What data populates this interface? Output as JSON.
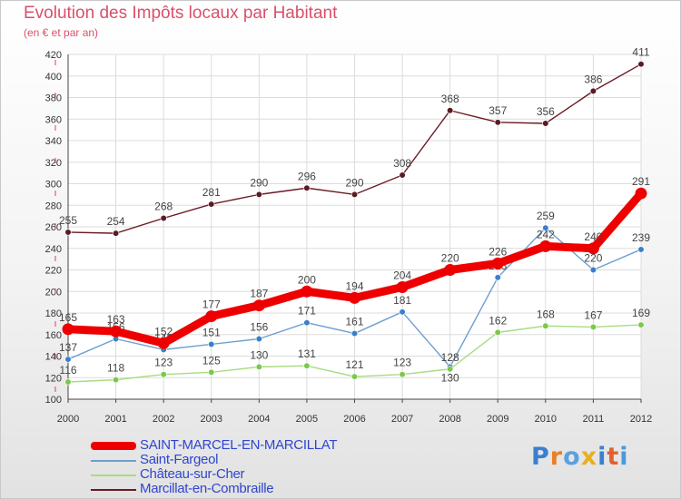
{
  "title": "Evolution des Impôts locaux par Habitant",
  "subtitle": "(en € et par an)",
  "logo": {
    "text": "Proxiti",
    "colors": [
      "#3a7fd0",
      "#e8802a",
      "#5aa0e0",
      "#e8b020",
      "#3a7fd0",
      "#e06030",
      "#4a9ad8"
    ]
  },
  "chart_data": {
    "type": "line",
    "title": "Evolution des Impôts locaux par Habitant",
    "ylabel": "(en € et par an)",
    "xlabel": "",
    "x": [
      "2000",
      "2001",
      "2002",
      "2003",
      "2004",
      "2005",
      "2006",
      "2007",
      "2008",
      "2009",
      "2010",
      "2011",
      "2012"
    ],
    "ylim": [
      100,
      420
    ],
    "yticks": [
      "100",
      "120",
      "140",
      "160",
      "180",
      "200",
      "220",
      "240",
      "260",
      "280",
      "300",
      "320",
      "340",
      "360",
      "380",
      "400",
      "420"
    ],
    "grid": true,
    "legend_position": "bottom-left",
    "series": [
      {
        "name": "Marcillat-en-Combraille",
        "color": "#6b1a24",
        "marker": "#5a1a22",
        "weight": "thin",
        "labels_below": [],
        "values": [
          255,
          254,
          268,
          281,
          290,
          296,
          290,
          308,
          368,
          357,
          356,
          386,
          411
        ]
      },
      {
        "name": "Saint-Fargeol",
        "color": "#6d9fd0",
        "marker": "#3a80c8",
        "weight": "thin",
        "labels_below": [
          8
        ],
        "values": [
          137,
          156,
          146,
          151,
          156,
          171,
          161,
          181,
          130,
          213,
          259,
          220,
          239
        ]
      },
      {
        "name": "Château-sur-Cher",
        "color": "#a8dc80",
        "marker": "#7cc84c",
        "weight": "thin",
        "labels_below": [],
        "values": [
          116,
          118,
          123,
          125,
          130,
          131,
          121,
          123,
          128,
          162,
          168,
          167,
          169
        ]
      },
      {
        "name": "SAINT-MARCEL-EN-MARCILLAT",
        "color": "#ee0000",
        "marker": "#ee0000",
        "weight": "thick",
        "labels_below": [],
        "values": [
          165,
          163,
          152,
          177,
          187,
          200,
          194,
          204,
          220,
          226,
          242,
          240,
          291
        ]
      }
    ],
    "legend_order": [
      "SAINT-MARCEL-EN-MARCILLAT",
      "Saint-Fargeol",
      "Château-sur-Cher",
      "Marcillat-en-Combraille"
    ]
  }
}
